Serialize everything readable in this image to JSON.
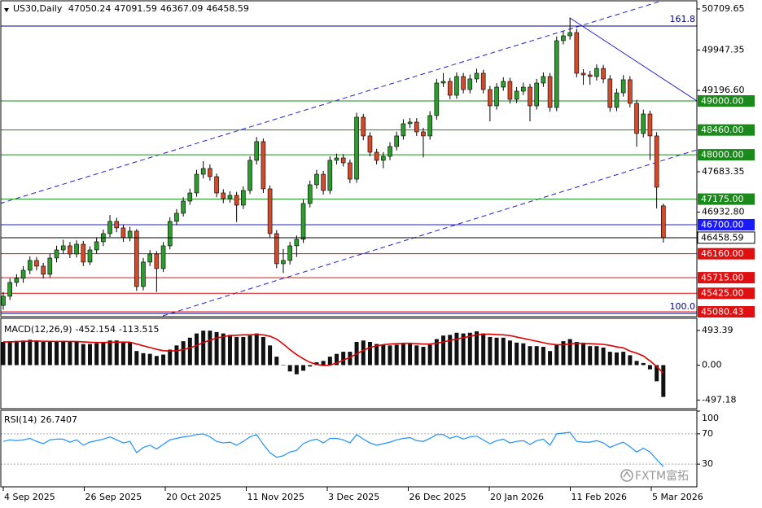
{
  "chart_data": [
    {
      "type": "candlestick",
      "title": "US30,Daily",
      "open": [
        45200,
        45370,
        45626,
        45702,
        45853,
        46035,
        45929,
        45778,
        46080,
        46231,
        46307,
        46156,
        46337,
        46005,
        46231,
        46383,
        46534,
        46761,
        46640,
        46458,
        46580,
        45550,
        46005,
        46156,
        45884,
        46307,
        46761,
        46912,
        47139,
        47290,
        47638,
        47744,
        47593,
        47290,
        47184,
        47245,
        47063,
        47336,
        47896,
        48244,
        47366,
        46534,
        45974,
        46035,
        46307,
        46428,
        47094,
        47442,
        47638,
        47336,
        47896,
        47941,
        47850,
        47547,
        48698,
        48350,
        48047,
        47896,
        47971,
        48153,
        48350,
        48577,
        48607,
        48425,
        48350,
        48728,
        49333,
        49363,
        49106,
        49454,
        49212,
        49409,
        49515,
        49212,
        48909,
        49257,
        49363,
        49030,
        49182,
        49257,
        48909,
        49333,
        49454,
        48879,
        50120,
        50210,
        50271,
        49515,
        49484,
        49454,
        49605,
        49409,
        48879,
        49151,
        49394,
        48955,
        48395,
        48758,
        48350,
        47050.24
      ],
      "high": [
        45450,
        45700,
        45780,
        45930,
        46110,
        46100,
        45990,
        46160,
        46310,
        46420,
        46380,
        46410,
        46400,
        46300,
        46460,
        46610,
        46880,
        46830,
        46700,
        46660,
        46620,
        46080,
        46230,
        46210,
        46380,
        46840,
        46990,
        47210,
        47370,
        47720,
        47880,
        47820,
        47650,
        47360,
        47320,
        47310,
        47410,
        47970,
        48330,
        48300,
        47430,
        46600,
        46250,
        46380,
        46500,
        47170,
        47520,
        47720,
        47700,
        47970,
        48020,
        48010,
        47910,
        48780,
        48760,
        48420,
        48110,
        48050,
        48230,
        48430,
        48660,
        48680,
        48680,
        48500,
        48810,
        49410,
        49520,
        49430,
        49530,
        49520,
        49490,
        49600,
        49580,
        49280,
        49330,
        49440,
        49430,
        49260,
        49340,
        49320,
        49410,
        49530,
        49520,
        50200,
        50300,
        50550,
        50340,
        49590,
        49560,
        49680,
        49670,
        49480,
        49230,
        49480,
        49460,
        49020,
        48840,
        48820,
        48420,
        47091.59
      ],
      "low": [
        45120,
        45300,
        45550,
        45620,
        45780,
        45850,
        45700,
        45720,
        46000,
        46160,
        46080,
        46090,
        45930,
        45950,
        46160,
        46300,
        46470,
        46560,
        46380,
        46390,
        45470,
        45480,
        45930,
        45450,
        45820,
        46240,
        46690,
        46850,
        47070,
        47220,
        47560,
        47520,
        47210,
        47100,
        47110,
        46750,
        46990,
        47270,
        47820,
        47290,
        46460,
        45890,
        45800,
        45960,
        46100,
        46360,
        47020,
        47370,
        47260,
        47270,
        47820,
        47780,
        47470,
        47480,
        48270,
        47970,
        47820,
        47750,
        47900,
        48080,
        48280,
        48500,
        48350,
        47950,
        48280,
        48650,
        49260,
        49030,
        49040,
        49140,
        49140,
        49340,
        49140,
        48620,
        48840,
        49190,
        48950,
        48960,
        49110,
        48620,
        48840,
        49260,
        48800,
        48810,
        50050,
        50140,
        49440,
        49300,
        49300,
        49380,
        49330,
        48800,
        48810,
        49080,
        48880,
        48150,
        48320,
        47900,
        47000,
        46367.09
      ],
      "close": [
        45370,
        45626,
        45702,
        45853,
        46035,
        45929,
        45778,
        46080,
        46231,
        46307,
        46156,
        46337,
        46005,
        46231,
        46383,
        46534,
        46761,
        46640,
        46458,
        46580,
        45550,
        46005,
        46156,
        45884,
        46307,
        46761,
        46912,
        47139,
        47290,
        47638,
        47744,
        47593,
        47290,
        47184,
        47245,
        47063,
        47336,
        47896,
        48244,
        47366,
        46534,
        45974,
        46035,
        46307,
        46428,
        47094,
        47442,
        47638,
        47336,
        47896,
        47941,
        47850,
        47547,
        48698,
        48350,
        48047,
        47896,
        47971,
        48153,
        48350,
        48577,
        48607,
        48425,
        48350,
        48728,
        49333,
        49363,
        49106,
        49454,
        49212,
        49409,
        49515,
        49212,
        48909,
        49257,
        49363,
        49030,
        49182,
        49257,
        48909,
        49333,
        49454,
        48879,
        50120,
        50210,
        50271,
        49515,
        49484,
        49454,
        49605,
        49409,
        48879,
        49151,
        49394,
        48955,
        48395,
        48758,
        48350,
        47396,
        46458.59
      ],
      "up_color": "#2e9b2e",
      "down_color": "#d24a2a",
      "ylim": [
        45005,
        50846
      ],
      "yticks": [
        50709.65,
        49947.35,
        {
          "value": 49196.6,
          "label": "49196.60"
        },
        47683.35,
        {
          "value": 46932.8,
          "label": "46932.80"
        }
      ],
      "levels": [
        {
          "value": 49000,
          "label": "49000.00",
          "color": "#1a8a1a"
        },
        {
          "value": 48460,
          "label": "48460.00",
          "color": "#1a8a1a"
        },
        {
          "value": 48000,
          "label": "48000.00",
          "color": "#1a8a1a"
        },
        {
          "value": 47175,
          "label": "47175.00",
          "color": "#1a8a1a"
        },
        {
          "value": 46700,
          "label": "46700.00",
          "color": "#1a1aff"
        },
        {
          "value": 46160,
          "label": "46160.00",
          "color": "#e01010"
        },
        {
          "value": 45715,
          "label": "45715.00",
          "color": "#e01010"
        },
        {
          "value": 45425,
          "label": "45425.00",
          "color": "#e01010"
        },
        {
          "value": 45080.43,
          "color": "#e01010"
        }
      ],
      "fibo": [
        {
          "level": 161.8,
          "price": 50392
        },
        {
          "level": 100,
          "level_label": "100.0",
          "price": 45050
        }
      ],
      "fibo_color": "#000080",
      "dates": [
        "4 Sep 2025",
        "26 Sep 2025",
        "20 Oct 2025",
        "11 Nov 2025",
        "3 Dec 2025",
        "26 Dec 2025",
        "20 Jan 2026",
        "11 Feb 2026",
        "5 Mar 2026"
      ],
      "watermark": "FXTM富拓"
    },
    {
      "type": "macd",
      "title": "MACD(12,26,9)",
      "values": [
        330,
        340,
        345,
        350,
        360,
        350,
        330,
        330,
        340,
        345,
        330,
        335,
        300,
        300,
        310,
        320,
        350,
        350,
        330,
        320,
        200,
        170,
        160,
        130,
        150,
        220,
        280,
        340,
        390,
        450,
        490,
        490,
        470,
        450,
        430,
        400,
        400,
        420,
        450,
        400,
        280,
        120,
        0,
        -90,
        -130,
        -80,
        -20,
        40,
        60,
        120,
        160,
        190,
        190,
        330,
        350,
        330,
        300,
        290,
        280,
        290,
        300,
        300,
        280,
        260,
        290,
        370,
        420,
        430,
        460,
        450,
        460,
        480,
        450,
        400,
        390,
        390,
        350,
        320,
        310,
        270,
        270,
        260,
        200,
        290,
        340,
        370,
        330,
        300,
        270,
        270,
        250,
        190,
        180,
        190,
        140,
        60,
        30,
        -60,
        -230,
        -452.154
      ],
      "color": "#111111",
      "signal": {
        "color": "#e00000",
        "values": [
          330,
          330,
          335,
          338,
          340,
          342,
          340,
          338,
          337,
          337,
          336,
          335,
          330,
          325,
          322,
          322,
          325,
          328,
          328,
          327,
          300,
          275,
          250,
          225,
          205,
          200,
          205,
          220,
          245,
          280,
          320,
          355,
          385,
          405,
          420,
          425,
          430,
          430,
          435,
          430,
          410,
          370,
          300,
          220,
          150,
          90,
          40,
          10,
          -5,
          0,
          30,
          70,
          110,
          160,
          210,
          250,
          275,
          290,
          300,
          305,
          310,
          310,
          305,
          300,
          300,
          310,
          330,
          350,
          370,
          390,
          410,
          430,
          440,
          440,
          435,
          430,
          420,
          400,
          380,
          360,
          340,
          320,
          300,
          290,
          290,
          300,
          310,
          310,
          305,
          300,
          295,
          280,
          260,
          245,
          200,
          170,
          130,
          60,
          -20,
          -113.515
        ]
      },
      "ylim": [
        -608,
        654
      ],
      "yticks": [
        493.39,
        {
          "value": 0,
          "label": "0.00"
        },
        -497.18
      ]
    },
    {
      "type": "line",
      "title": "RSI(14)",
      "values": [
        60,
        62,
        61,
        62,
        64,
        60,
        57,
        62,
        63,
        63,
        59,
        62,
        55,
        59,
        61,
        63,
        66,
        62,
        58,
        60,
        45,
        52,
        55,
        50,
        56,
        62,
        64,
        66,
        67,
        69,
        70,
        66,
        60,
        58,
        59,
        55,
        60,
        66,
        69,
        56,
        45,
        39,
        41,
        46,
        48,
        57,
        61,
        63,
        58,
        64,
        64,
        62,
        58,
        69,
        63,
        58,
        55,
        57,
        59,
        62,
        64,
        65,
        61,
        60,
        64,
        69,
        69,
        64,
        67,
        63,
        66,
        67,
        62,
        57,
        61,
        63,
        58,
        60,
        61,
        56,
        61,
        63,
        55,
        70,
        71,
        72,
        60,
        59,
        59,
        61,
        58,
        52,
        56,
        59,
        53,
        46,
        51,
        46,
        36,
        26.7407
      ],
      "color": "#1e90ff",
      "ylim": [
        0,
        100
      ],
      "yticks": [
        100,
        70,
        30
      ]
    }
  ]
}
